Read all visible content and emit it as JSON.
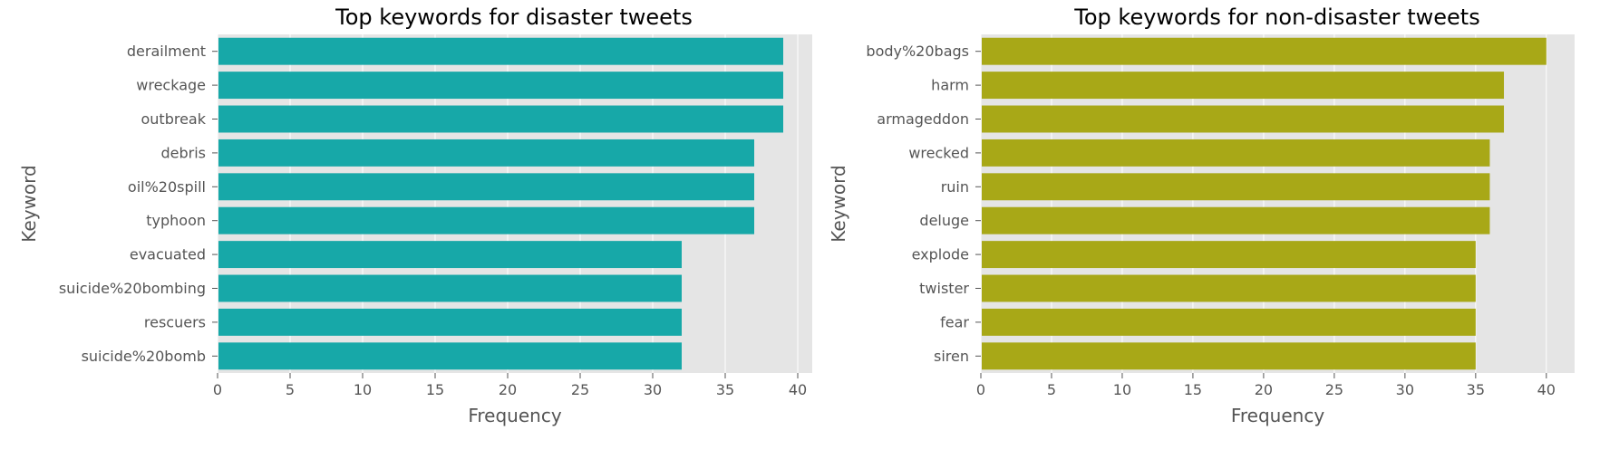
{
  "chart_data": [
    {
      "type": "bar",
      "orientation": "horizontal",
      "title": "Top keywords for disaster tweets",
      "xlabel": "Frequency",
      "ylabel": "Keyword",
      "categories": [
        "derailment",
        "wreckage",
        "outbreak",
        "debris",
        "oil%20spill",
        "typhoon",
        "evacuated",
        "suicide%20bombing",
        "rescuers",
        "suicide%20bomb"
      ],
      "values": [
        39,
        39,
        39,
        37,
        37,
        37,
        32,
        32,
        32,
        32
      ],
      "xlim": [
        0,
        41
      ],
      "xticks": [
        0,
        5,
        10,
        15,
        20,
        25,
        30,
        35,
        40
      ],
      "color": "#17a8a8",
      "grid": true,
      "background": "#e5e5e5"
    },
    {
      "type": "bar",
      "orientation": "horizontal",
      "title": "Top keywords for non-disaster tweets",
      "xlabel": "Frequency",
      "ylabel": "Keyword",
      "categories": [
        "body%20bags",
        "harm",
        "armageddon",
        "wrecked",
        "ruin",
        "deluge",
        "explode",
        "twister",
        "fear",
        "siren"
      ],
      "values": [
        40,
        37,
        37,
        36,
        36,
        36,
        35,
        35,
        35,
        35
      ],
      "xlim": [
        0,
        42
      ],
      "xticks": [
        0,
        5,
        10,
        15,
        20,
        25,
        30,
        35,
        40
      ],
      "color": "#a8a817",
      "grid": true,
      "background": "#e5e5e5"
    }
  ]
}
